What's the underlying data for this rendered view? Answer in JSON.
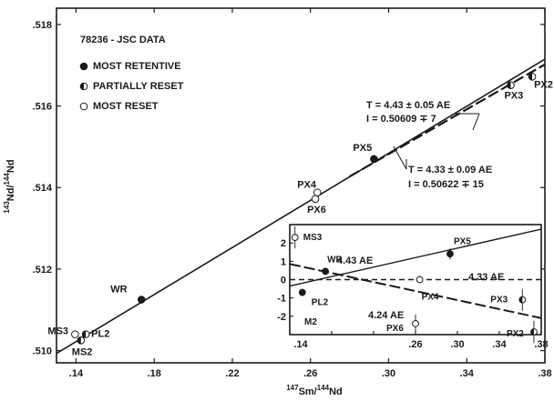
{
  "chart_data": [
    {
      "type": "scatter",
      "xlabel_sup": "147",
      "xlabel_a": "Sm/",
      "xlabel_sup2": "144",
      "xlabel_b": "Nd",
      "ylabel_sup": "143",
      "ylabel_a": "Nd/",
      "ylabel_sup2": "144",
      "ylabel_b": "Nd",
      "xlim": [
        0.13,
        0.38
      ],
      "ylim": [
        0.5097,
        0.5184
      ],
      "xticks": [
        0.14,
        0.18,
        0.22,
        0.26,
        0.3,
        0.34,
        0.38
      ],
      "xtick_labels": [
        ".14",
        ".18",
        ".22",
        ".26",
        ".30",
        ".34",
        ".38"
      ],
      "yticks": [
        0.51,
        0.512,
        0.514,
        0.516,
        0.518
      ],
      "ytick_labels": [
        ".510",
        ".512",
        ".514",
        ".516",
        ".518"
      ],
      "grid": false,
      "legend": {
        "placement": "top-left",
        "title": "78236 - JSC DATA",
        "entries": [
          {
            "label": "MOST RETENTIVE",
            "marker": "filled"
          },
          {
            "label": "PARTIALLY RESET",
            "marker": "half"
          },
          {
            "label": "MOST RESET",
            "marker": "open"
          }
        ]
      },
      "points": [
        {
          "label": "MS3",
          "x": 0.1395,
          "y": 0.5104,
          "marker": "open"
        },
        {
          "label": "MS2",
          "x": 0.1425,
          "y": 0.51025,
          "marker": "half"
        },
        {
          "label": "PL2",
          "x": 0.145,
          "y": 0.5104,
          "marker": "half"
        },
        {
          "label": "WR",
          "x": 0.1735,
          "y": 0.51125,
          "marker": "filled"
        },
        {
          "label": "PX4",
          "x": 0.2635,
          "y": 0.51388,
          "marker": "open"
        },
        {
          "label": "PX6",
          "x": 0.2625,
          "y": 0.51372,
          "marker": "open"
        },
        {
          "label": "PX5",
          "x": 0.2925,
          "y": 0.5147,
          "marker": "filled"
        },
        {
          "label": "PX3",
          "x": 0.3625,
          "y": 0.51651,
          "marker": "half"
        },
        {
          "label": "PX2",
          "x": 0.3735,
          "y": 0.51672,
          "marker": "half"
        }
      ],
      "lines": [
        {
          "style": "solid",
          "x": [
            0.13,
            0.38
          ],
          "y": [
            0.50993,
            0.51715
          ],
          "annotation": [
            "T = 4.43  ± 0.05 AE",
            "I = 0.50609 ∓ 7"
          ]
        },
        {
          "style": "dashed",
          "x": [
            0.28,
            0.38
          ],
          "y": [
            0.51427,
            0.51702
          ],
          "annotation": [
            "T = 4.33 ± 0.09 AE",
            "I = 0.50622 ∓ 15"
          ]
        }
      ]
    },
    {
      "type": "scatter",
      "xlim": [
        0.14,
        0.38
      ],
      "ylim": [
        -3,
        3
      ],
      "xticks": [
        0.14,
        0.18,
        0.22,
        0.26,
        0.3,
        0.34,
        0.38
      ],
      "xtick_labels": [
        ".14",
        "",
        "",
        "",
        ".30",
        ".34",
        ".38"
      ],
      "yticks": [
        2,
        1,
        0,
        -1,
        -2
      ],
      "ytick_labels": [
        "2",
        "1",
        "0",
        "-1",
        "-2"
      ],
      "first_xtick_label": ".14",
      "points": [
        {
          "label": "MS3",
          "x": 0.145,
          "y": 2.3,
          "marker": "open",
          "err": 0.6
        },
        {
          "label": "WR",
          "x": 0.174,
          "y": 0.45,
          "marker": "filled",
          "err": 0.2
        },
        {
          "label": "PL2",
          "x": 0.152,
          "y": -0.7,
          "marker": "filled",
          "err": 0.2
        },
        {
          "label": "PX4",
          "x": 0.264,
          "y": 0.0,
          "marker": "open",
          "err": 0.2
        },
        {
          "label": "PX5",
          "x": 0.293,
          "y": 1.4,
          "marker": "filled",
          "err": 0.3
        },
        {
          "label": "PX3",
          "x": 0.362,
          "y": -1.1,
          "marker": "half",
          "err": 0.6
        },
        {
          "label": "PX6",
          "x": 0.26,
          "y": -2.4,
          "marker": "open",
          "err": 0.5
        },
        {
          "label": "PX2",
          "x": 0.373,
          "y": -2.85,
          "marker": "half",
          "err": 0.6
        }
      ],
      "extra_labels": [
        "M2"
      ],
      "lines": [
        {
          "label": "4.43 AE",
          "style": "solid",
          "x": [
            0.14,
            0.38
          ],
          "y": [
            -0.35,
            2.75
          ]
        },
        {
          "label": "4.33 AE",
          "style": "dashed",
          "x": [
            0.14,
            0.38
          ],
          "y": [
            0.0,
            0.0
          ]
        },
        {
          "label": "4.24 AE",
          "style": "dashed",
          "x": [
            0.14,
            0.38
          ],
          "y": [
            0.85,
            -2.1
          ]
        }
      ]
    }
  ]
}
